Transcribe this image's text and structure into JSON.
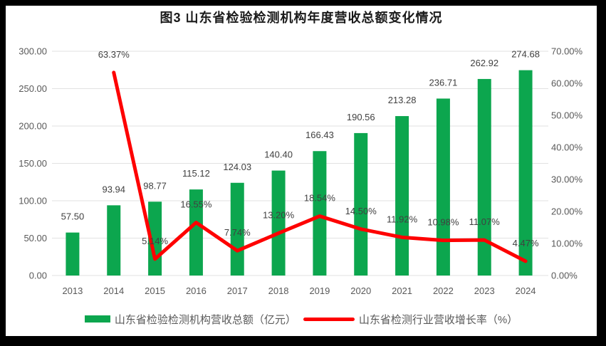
{
  "page": {
    "frame_color": "#000000",
    "panel_color": "#ffffff"
  },
  "title": "图3  山东省检验检测机构年度营收总额变化情况",
  "legend": {
    "items": [
      {
        "swatch": "bar",
        "color": "#0CA64E",
        "label": "山东省检验检测机构营收总额（亿元）"
      },
      {
        "swatch": "line",
        "color": "#FE0000",
        "label": "山东省检测行业营收增长率（%）"
      }
    ]
  },
  "chart_data": {
    "type": "combo",
    "title": "图3  山东省检验检测机构年度营收总额变化情况",
    "categories": [
      "2013",
      "2014",
      "2015",
      "2016",
      "2017",
      "2018",
      "2019",
      "2020",
      "2021",
      "2022",
      "2023",
      "2024"
    ],
    "series": [
      {
        "name": "山东省检验检测机构营收总额（亿元）",
        "type": "bar",
        "axis": "left",
        "color": "#0CA64E",
        "values": [
          57.5,
          93.94,
          98.77,
          115.12,
          124.03,
          140.4,
          166.43,
          190.56,
          213.28,
          236.71,
          262.92,
          274.68
        ],
        "data_labels": [
          "57.50",
          "93.94",
          "98.77",
          "115.12",
          "124.03",
          "140.40",
          "166.43",
          "190.56",
          "213.28",
          "236.71",
          "262.92",
          "274.68"
        ]
      },
      {
        "name": "山东省检测行业营收增长率（%）",
        "type": "line",
        "axis": "right",
        "color": "#FE0000",
        "values": [
          null,
          63.37,
          5.14,
          16.55,
          7.74,
          13.2,
          18.54,
          14.5,
          11.92,
          10.98,
          11.07,
          4.47
        ],
        "data_labels": [
          null,
          "63.37%",
          "5.14%",
          "16.55%",
          "7.74%",
          "13.20%",
          "18.54%",
          "14.50%",
          "11.92%",
          "10.98%",
          "11.07%",
          "4.47%"
        ]
      }
    ],
    "left_axis": {
      "min": 0,
      "max": 300,
      "step": 50,
      "tick_labels": [
        "0.00",
        "50.00",
        "100.00",
        "150.00",
        "200.00",
        "250.00",
        "300.00"
      ]
    },
    "right_axis": {
      "min": 0,
      "max": 70,
      "step": 10,
      "tick_labels": [
        "0.00%",
        "10.00%",
        "20.00%",
        "30.00%",
        "40.00%",
        "50.00%",
        "60.00%",
        "70.00%"
      ]
    },
    "grid": true,
    "legend_position": "bottom",
    "styles": {
      "grid_color": "#E2E2E2",
      "tick_color": "#595959",
      "data_label_color": "#404040",
      "title_color": "#1a1a1a"
    }
  }
}
